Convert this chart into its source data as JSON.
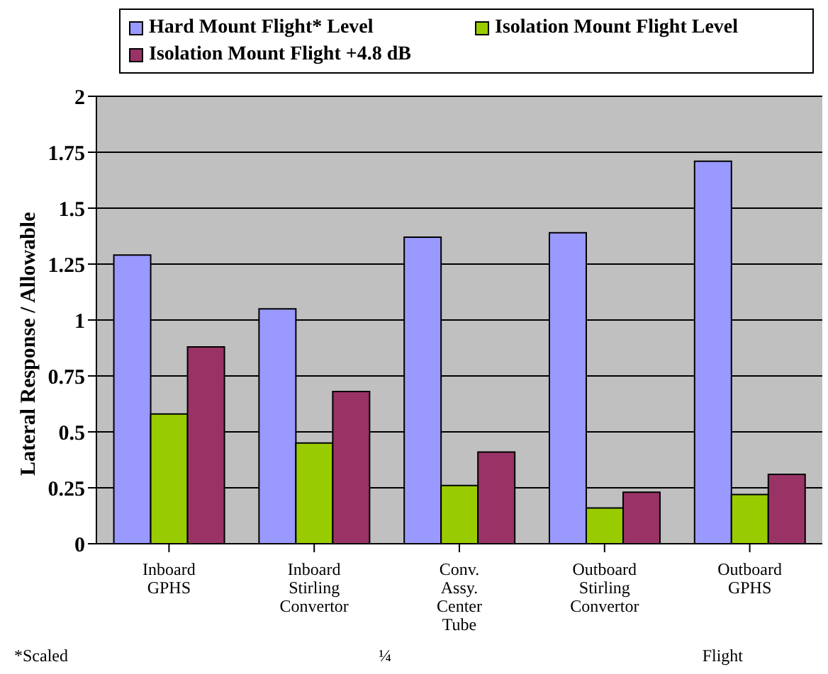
{
  "chart_data": {
    "type": "bar",
    "ylabel": "Lateral Response / Allowable",
    "categories": [
      "Inboard GPHS",
      "Inboard Stirling Convertor",
      "Conv. Assy. Center Tube",
      "Outboard Stirling Convertor",
      "Outboard GPHS"
    ],
    "series": [
      {
        "name": "Hard Mount Flight* Level",
        "color": "#9999ff",
        "values": [
          1.29,
          1.05,
          1.37,
          1.39,
          1.71
        ]
      },
      {
        "name": "Isolation Mount Flight Level",
        "color": "#99cc00",
        "values": [
          0.58,
          0.45,
          0.26,
          0.16,
          0.22
        ]
      },
      {
        "name": "Isolation Mount Flight +4.8 dB",
        "color": "#993366",
        "values": [
          0.88,
          0.68,
          0.41,
          0.23,
          0.31
        ]
      }
    ],
    "ylim": [
      0,
      2
    ],
    "yticks": [
      0,
      0.25,
      0.5,
      0.75,
      1,
      1.25,
      1.5,
      1.75,
      2
    ],
    "grid": "y",
    "legend": "top",
    "annotations": [
      "*Scaled",
      "¼",
      "Flight"
    ]
  }
}
